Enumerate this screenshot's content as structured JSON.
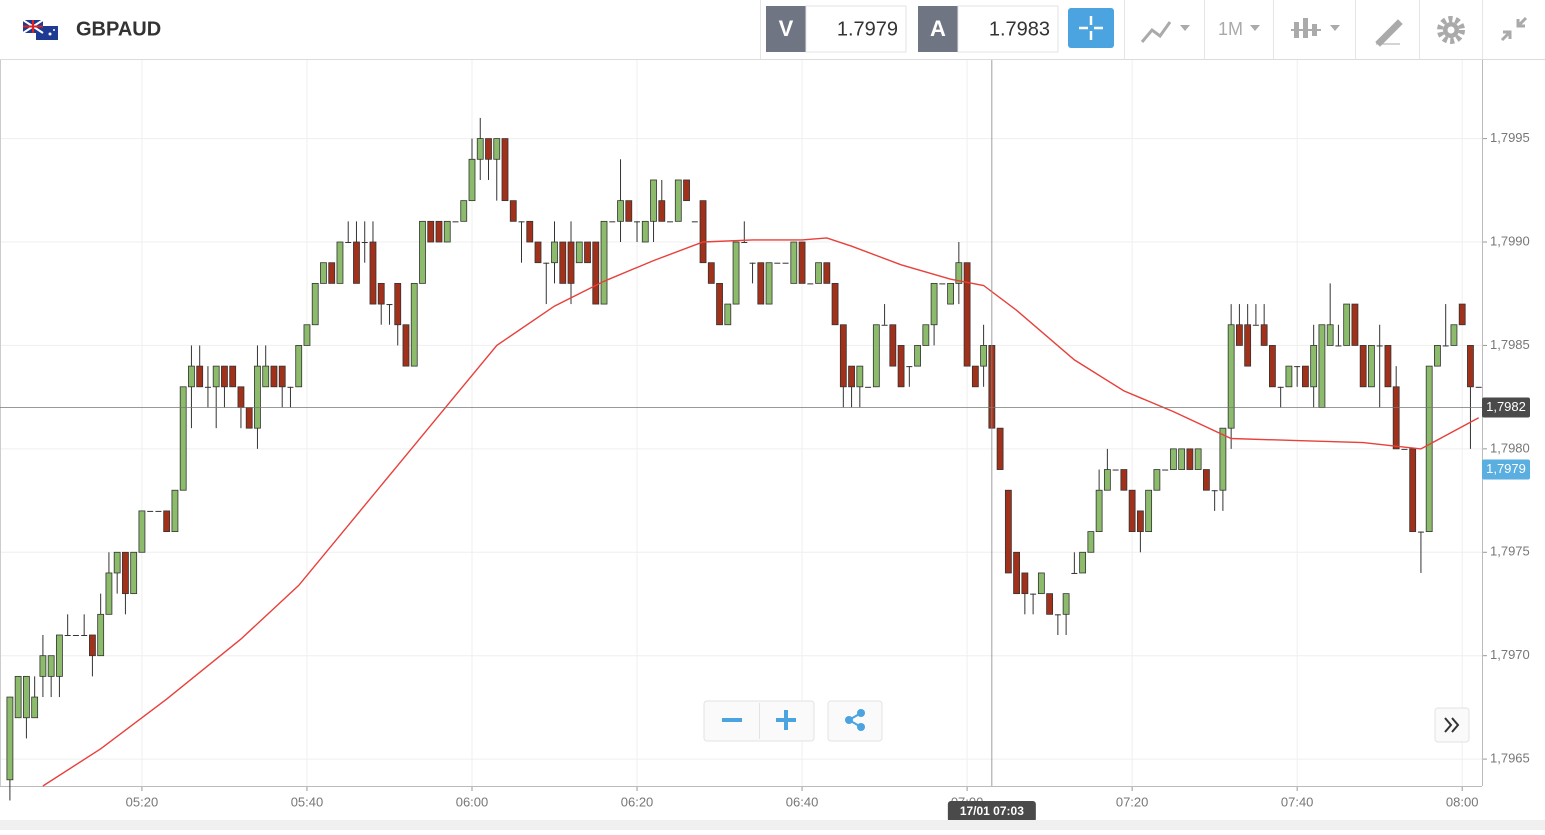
{
  "toolbar": {
    "symbol": "GBPAUD",
    "bid_label": "V",
    "bid": "1.7979",
    "ask_label": "A",
    "ask": "1.7983",
    "timeframe": "1M"
  },
  "chart_data": {
    "type": "candlestick",
    "xlim": [
      302.8,
      482.4
    ],
    "ylim": [
      1.79637,
      1.79988
    ],
    "xticks": [
      {
        "value": 320,
        "label": "05:20"
      },
      {
        "value": 340,
        "label": "05:40"
      },
      {
        "value": 360,
        "label": "06:00"
      },
      {
        "value": 380,
        "label": "06:20"
      },
      {
        "value": 400,
        "label": "06:40"
      },
      {
        "value": 420,
        "label": "07:00"
      },
      {
        "value": 440,
        "label": "07:20"
      },
      {
        "value": 460,
        "label": "07:40"
      },
      {
        "value": 480,
        "label": "08:00"
      }
    ],
    "yticks": [
      {
        "value": 1.7965,
        "label": "1,7965"
      },
      {
        "value": 1.797,
        "label": "1,7970"
      },
      {
        "value": 1.7975,
        "label": "1,7975"
      },
      {
        "value": 1.798,
        "label": "1,7980"
      },
      {
        "value": 1.7985,
        "label": "1,7985"
      },
      {
        "value": 1.799,
        "label": "1,7990"
      },
      {
        "value": 1.7995,
        "label": "1,7995"
      }
    ],
    "grid": true,
    "up_color": "#8cbb6c",
    "down_color": "#a2311b",
    "x": [
      304,
      305,
      306,
      307,
      308,
      309,
      310,
      311,
      312,
      313,
      314,
      315,
      316,
      317,
      318,
      319,
      320,
      321,
      322,
      323,
      324,
      325,
      326,
      327,
      328,
      329,
      330,
      331,
      332,
      333,
      334,
      335,
      336,
      337,
      338,
      339,
      340,
      341,
      342,
      343,
      344,
      345,
      346,
      347,
      348,
      349,
      350,
      351,
      352,
      353,
      354,
      355,
      356,
      357,
      358,
      359,
      360,
      361,
      362,
      363,
      364,
      365,
      366,
      367,
      368,
      369,
      370,
      371,
      372,
      373,
      374,
      375,
      376,
      377,
      378,
      379,
      380,
      381,
      382,
      383,
      384,
      385,
      386,
      387,
      388,
      389,
      390,
      391,
      392,
      393,
      394,
      395,
      396,
      397,
      398,
      399,
      400,
      401,
      402,
      403,
      404,
      405,
      406,
      407,
      408,
      409,
      410,
      411,
      412,
      413,
      414,
      415,
      416,
      417,
      418,
      419,
      420,
      421,
      422,
      423,
      424,
      425,
      426,
      427,
      428,
      429,
      430,
      431,
      432,
      433,
      434,
      435,
      436,
      437,
      438,
      439,
      440,
      441,
      442,
      443,
      444,
      445,
      446,
      447,
      448,
      449,
      450,
      451,
      452,
      453,
      454,
      455,
      456,
      457,
      458,
      459,
      460,
      461,
      462,
      463,
      464,
      465,
      466,
      467,
      468,
      469,
      470,
      471,
      472,
      473,
      474,
      475,
      476,
      477,
      478,
      479,
      480,
      481,
      482
    ],
    "candles": [
      [
        1.7964,
        1.7968,
        1.7963,
        1.7968
      ],
      [
        1.7967,
        1.7969,
        1.7967,
        1.7969
      ],
      [
        1.7967,
        1.7969,
        1.7966,
        1.7969
      ],
      [
        1.7967,
        1.7969,
        1.7967,
        1.7968
      ],
      [
        1.7969,
        1.7971,
        1.7968,
        1.797
      ],
      [
        1.7969,
        1.797,
        1.7968,
        1.797
      ],
      [
        1.7969,
        1.7971,
        1.7968,
        1.7971
      ],
      [
        1.7971,
        1.7972,
        1.7971,
        1.7971
      ],
      [
        1.7971,
        1.7971,
        1.7971,
        1.7971
      ],
      [
        1.7971,
        1.7972,
        1.7971,
        1.7971
      ],
      [
        1.7971,
        1.7971,
        1.7969,
        1.797
      ],
      [
        1.797,
        1.7973,
        1.797,
        1.7972
      ],
      [
        1.7972,
        1.7975,
        1.7972,
        1.7974
      ],
      [
        1.7974,
        1.7975,
        1.7973,
        1.7975
      ],
      [
        1.7975,
        1.7975,
        1.7972,
        1.7973
      ],
      [
        1.7973,
        1.7975,
        1.7973,
        1.7975
      ],
      [
        1.7975,
        1.7977,
        1.7975,
        1.7977
      ],
      [
        1.7977,
        1.7977,
        1.7977,
        1.7977
      ],
      [
        1.7977,
        1.7977,
        1.7977,
        1.7977
      ],
      [
        1.7977,
        1.7977,
        1.7976,
        1.7976
      ],
      [
        1.7976,
        1.7978,
        1.7976,
        1.7978
      ],
      [
        1.7978,
        1.7983,
        1.7978,
        1.7983
      ],
      [
        1.7983,
        1.7985,
        1.7981,
        1.7984
      ],
      [
        1.7984,
        1.7985,
        1.7983,
        1.7983
      ],
      [
        1.7983,
        1.7984,
        1.7982,
        1.7983
      ],
      [
        1.7983,
        1.7984,
        1.7981,
        1.7984
      ],
      [
        1.7984,
        1.7984,
        1.7982,
        1.7983
      ],
      [
        1.7984,
        1.7984,
        1.7983,
        1.7983
      ],
      [
        1.7983,
        1.7983,
        1.7981,
        1.7982
      ],
      [
        1.7982,
        1.7982,
        1.7981,
        1.7981
      ],
      [
        1.7981,
        1.7985,
        1.798,
        1.7984
      ],
      [
        1.7983,
        1.7985,
        1.7983,
        1.7984
      ],
      [
        1.7984,
        1.7984,
        1.7983,
        1.7983
      ],
      [
        1.7984,
        1.7984,
        1.7982,
        1.7983
      ],
      [
        1.7983,
        1.7983,
        1.7982,
        1.7983
      ],
      [
        1.7983,
        1.7985,
        1.7983,
        1.7985
      ],
      [
        1.7985,
        1.7986,
        1.7985,
        1.7986
      ],
      [
        1.7986,
        1.7988,
        1.7986,
        1.7988
      ],
      [
        1.7988,
        1.7989,
        1.7988,
        1.7989
      ],
      [
        1.7989,
        1.7989,
        1.7988,
        1.7988
      ],
      [
        1.7988,
        1.799,
        1.7988,
        1.799
      ],
      [
        1.799,
        1.7991,
        1.799,
        1.799
      ],
      [
        1.799,
        1.7991,
        1.7988,
        1.7988
      ],
      [
        1.799,
        1.7991,
        1.7989,
        1.799
      ],
      [
        1.799,
        1.7991,
        1.7987,
        1.7987
      ],
      [
        1.7988,
        1.7988,
        1.7986,
        1.7987
      ],
      [
        1.7987,
        1.7987,
        1.7986,
        1.7987
      ],
      [
        1.7988,
        1.7988,
        1.7985,
        1.7986
      ],
      [
        1.7986,
        1.7986,
        1.7984,
        1.7984
      ],
      [
        1.7984,
        1.7988,
        1.7984,
        1.7988
      ],
      [
        1.7988,
        1.7991,
        1.7988,
        1.7991
      ],
      [
        1.7991,
        1.7991,
        1.799,
        1.799
      ],
      [
        1.7991,
        1.7991,
        1.799,
        1.799
      ],
      [
        1.799,
        1.7991,
        1.799,
        1.7991
      ],
      [
        1.7991,
        1.7991,
        1.7991,
        1.7991
      ],
      [
        1.7991,
        1.7992,
        1.7991,
        1.7992
      ],
      [
        1.7992,
        1.7995,
        1.7992,
        1.7994
      ],
      [
        1.7994,
        1.7996,
        1.7993,
        1.7995
      ],
      [
        1.7995,
        1.7995,
        1.7993,
        1.7994
      ],
      [
        1.7994,
        1.7995,
        1.7992,
        1.7995
      ],
      [
        1.7995,
        1.7995,
        1.7992,
        1.7992
      ],
      [
        1.7992,
        1.7992,
        1.7991,
        1.7991
      ],
      [
        1.7991,
        1.7991,
        1.7989,
        1.7991
      ],
      [
        1.7991,
        1.7991,
        1.799,
        1.799
      ],
      [
        1.799,
        1.799,
        1.7989,
        1.7989
      ],
      [
        1.7989,
        1.7989,
        1.7987,
        1.7989
      ],
      [
        1.7989,
        1.7991,
        1.7988,
        1.799
      ],
      [
        1.799,
        1.799,
        1.7988,
        1.7988
      ],
      [
        1.799,
        1.7991,
        1.7987,
        1.7988
      ],
      [
        1.7989,
        1.799,
        1.7989,
        1.799
      ],
      [
        1.799,
        1.799,
        1.7989,
        1.7989
      ],
      [
        1.799,
        1.799,
        1.7987,
        1.7987
      ],
      [
        1.7987,
        1.7991,
        1.7987,
        1.7991
      ],
      [
        1.7991,
        1.7991,
        1.7991,
        1.7991
      ],
      [
        1.7991,
        1.7994,
        1.799,
        1.7992
      ],
      [
        1.7992,
        1.7992,
        1.7991,
        1.7991
      ],
      [
        1.7991,
        1.7991,
        1.799,
        1.7991
      ],
      [
        1.799,
        1.7991,
        1.799,
        1.7991
      ],
      [
        1.7991,
        1.7993,
        1.799,
        1.7993
      ],
      [
        1.7992,
        1.7993,
        1.7991,
        1.7991
      ],
      [
        1.7991,
        1.7991,
        1.7991,
        1.7991
      ],
      [
        1.7991,
        1.7993,
        1.7991,
        1.7993
      ],
      [
        1.7993,
        1.7993,
        1.7992,
        1.7992
      ],
      [
        1.7991,
        1.7991,
        1.7991,
        1.7991
      ],
      [
        1.7992,
        1.7992,
        1.7989,
        1.7989
      ],
      [
        1.7989,
        1.7989,
        1.7988,
        1.7988
      ],
      [
        1.7988,
        1.7988,
        1.7986,
        1.7986
      ],
      [
        1.7986,
        1.7987,
        1.7986,
        1.7987
      ],
      [
        1.7987,
        1.799,
        1.7987,
        1.799
      ],
      [
        1.799,
        1.7991,
        1.799,
        1.799
      ],
      [
        1.7989,
        1.7989,
        1.7988,
        1.7989
      ],
      [
        1.7989,
        1.7989,
        1.7987,
        1.7987
      ],
      [
        1.7987,
        1.7989,
        1.7987,
        1.7989
      ],
      [
        1.7989,
        1.7989,
        1.7989,
        1.7989
      ],
      [
        1.7989,
        1.7989,
        1.7989,
        1.7989
      ],
      [
        1.7988,
        1.799,
        1.7988,
        1.799
      ],
      [
        1.799,
        1.799,
        1.7988,
        1.7988
      ],
      [
        1.7988,
        1.7988,
        1.7988,
        1.7988
      ],
      [
        1.7988,
        1.7989,
        1.7988,
        1.7989
      ],
      [
        1.7989,
        1.7989,
        1.7988,
        1.7988
      ],
      [
        1.7988,
        1.7988,
        1.7986,
        1.7986
      ],
      [
        1.7986,
        1.7986,
        1.7982,
        1.7983
      ],
      [
        1.7984,
        1.7984,
        1.7982,
        1.7983
      ],
      [
        1.7983,
        1.7984,
        1.7982,
        1.7984
      ],
      [
        1.7983,
        1.7983,
        1.7983,
        1.7983
      ],
      [
        1.7983,
        1.7986,
        1.7983,
        1.7986
      ],
      [
        1.7986,
        1.7987,
        1.7986,
        1.7986
      ],
      [
        1.7986,
        1.7986,
        1.7984,
        1.7984
      ],
      [
        1.7985,
        1.7985,
        1.7983,
        1.7983
      ],
      [
        1.7984,
        1.7984,
        1.7983,
        1.7984
      ],
      [
        1.7984,
        1.7985,
        1.7984,
        1.7985
      ],
      [
        1.7985,
        1.7986,
        1.7985,
        1.7986
      ],
      [
        1.7986,
        1.7988,
        1.7985,
        1.7988
      ],
      [
        1.7988,
        1.7988,
        1.7988,
        1.7988
      ],
      [
        1.7987,
        1.7988,
        1.7987,
        1.7988
      ],
      [
        1.7988,
        1.799,
        1.7987,
        1.7989
      ],
      [
        1.7989,
        1.7989,
        1.7984,
        1.7984
      ],
      [
        1.7984,
        1.7984,
        1.7983,
        1.7983
      ],
      [
        1.7984,
        1.7986,
        1.7983,
        1.7985
      ],
      [
        1.7985,
        1.7985,
        1.7981,
        1.7981
      ],
      [
        1.7981,
        1.7981,
        1.7979,
        1.7979
      ],
      [
        1.7978,
        1.7978,
        1.7974,
        1.7974
      ],
      [
        1.7975,
        1.7975,
        1.7973,
        1.7973
      ],
      [
        1.7974,
        1.7974,
        1.7972,
        1.7973
      ],
      [
        1.7973,
        1.7973,
        1.7972,
        1.7973
      ],
      [
        1.7973,
        1.7974,
        1.7973,
        1.7974
      ],
      [
        1.7973,
        1.7973,
        1.7972,
        1.7972
      ],
      [
        1.7972,
        1.7972,
        1.7971,
        1.7972
      ],
      [
        1.7972,
        1.7973,
        1.7971,
        1.7973
      ],
      [
        1.7974,
        1.7975,
        1.7974,
        1.7974
      ],
      [
        1.7974,
        1.7975,
        1.7974,
        1.7975
      ],
      [
        1.7975,
        1.7976,
        1.7975,
        1.7976
      ],
      [
        1.7976,
        1.7979,
        1.7976,
        1.7978
      ],
      [
        1.7978,
        1.798,
        1.7978,
        1.7979
      ],
      [
        1.7979,
        1.7979,
        1.7979,
        1.7979
      ],
      [
        1.7979,
        1.7979,
        1.7978,
        1.7978
      ],
      [
        1.7978,
        1.7978,
        1.7976,
        1.7976
      ],
      [
        1.7977,
        1.7977,
        1.7975,
        1.7976
      ],
      [
        1.7976,
        1.7978,
        1.7976,
        1.7978
      ],
      [
        1.7978,
        1.7979,
        1.7978,
        1.7979
      ],
      [
        1.7979,
        1.7979,
        1.7979,
        1.7979
      ],
      [
        1.7979,
        1.798,
        1.7979,
        1.798
      ],
      [
        1.7979,
        1.798,
        1.7979,
        1.798
      ],
      [
        1.798,
        1.798,
        1.7979,
        1.7979
      ],
      [
        1.7979,
        1.798,
        1.7979,
        1.798
      ],
      [
        1.7979,
        1.7979,
        1.7978,
        1.7978
      ],
      [
        1.7978,
        1.7978,
        1.7977,
        1.7978
      ],
      [
        1.7978,
        1.7981,
        1.7977,
        1.7981
      ],
      [
        1.7981,
        1.7987,
        1.798,
        1.7986
      ],
      [
        1.7986,
        1.7987,
        1.7985,
        1.7985
      ],
      [
        1.7986,
        1.7987,
        1.7984,
        1.7984
      ],
      [
        1.7986,
        1.7987,
        1.7986,
        1.7986
      ],
      [
        1.7986,
        1.7987,
        1.7985,
        1.7985
      ],
      [
        1.7985,
        1.7985,
        1.7983,
        1.7983
      ],
      [
        1.7983,
        1.7983,
        1.7982,
        1.7983
      ],
      [
        1.7983,
        1.7984,
        1.7983,
        1.7984
      ],
      [
        1.7984,
        1.7984,
        1.7983,
        1.7984
      ],
      [
        1.7984,
        1.7984,
        1.7983,
        1.7983
      ],
      [
        1.7983,
        1.7986,
        1.7982,
        1.7985
      ],
      [
        1.7982,
        1.7986,
        1.7982,
        1.7986
      ],
      [
        1.7985,
        1.7988,
        1.7985,
        1.7986
      ],
      [
        1.7985,
        1.7986,
        1.7985,
        1.7985
      ],
      [
        1.7985,
        1.7987,
        1.7985,
        1.7987
      ],
      [
        1.7987,
        1.7987,
        1.7985,
        1.7985
      ],
      [
        1.7985,
        1.7985,
        1.7983,
        1.7983
      ],
      [
        1.7983,
        1.7985,
        1.7983,
        1.7985
      ],
      [
        1.7985,
        1.7986,
        1.7982,
        1.7985
      ],
      [
        1.7985,
        1.7985,
        1.7983,
        1.7983
      ],
      [
        1.7983,
        1.7984,
        1.798,
        1.798
      ],
      [
        1.798,
        1.798,
        1.798,
        1.798
      ],
      [
        1.798,
        1.798,
        1.7976,
        1.7976
      ],
      [
        1.7976,
        1.7976,
        1.7974,
        1.7976
      ],
      [
        1.7976,
        1.7984,
        1.7976,
        1.7984
      ],
      [
        1.7984,
        1.7985,
        1.7984,
        1.7985
      ],
      [
        1.7985,
        1.7987,
        1.7985,
        1.7985
      ],
      [
        1.7985,
        1.7986,
        1.7985,
        1.7986
      ],
      [
        1.7987,
        1.7987,
        1.7986,
        1.7986
      ],
      [
        1.7985,
        1.7985,
        1.798,
        1.7983
      ],
      [
        1.7983,
        1.7983,
        1.7983,
        1.7983
      ]
    ],
    "ma": {
      "color": "#e8403a",
      "x": [
        308,
        315,
        323,
        332,
        339,
        345,
        351,
        357,
        363,
        370,
        376,
        382,
        388,
        394,
        400,
        403,
        406,
        412,
        418,
        422,
        426,
        433,
        439,
        445,
        452,
        460,
        468,
        475,
        482
      ],
      "values": [
        1.79637,
        1.79655,
        1.79679,
        1.79708,
        1.79734,
        1.79763,
        1.79792,
        1.79821,
        1.7985,
        1.79869,
        1.79881,
        1.79891,
        1.799,
        1.79901,
        1.79901,
        1.79902,
        1.79898,
        1.79889,
        1.79882,
        1.79879,
        1.79867,
        1.79843,
        1.79828,
        1.79818,
        1.79805,
        1.79804,
        1.79803,
        1.798,
        1.79815
      ]
    },
    "price_tags": [
      {
        "value": 1.7982,
        "label": "1,7982",
        "color": "#4a4a4a"
      },
      {
        "value": 1.7979,
        "label": "1,7979",
        "color": "#5aaee0"
      }
    ],
    "crosshair": {
      "x": 423,
      "y": 1.7982,
      "label": "17/01 07:03"
    }
  }
}
